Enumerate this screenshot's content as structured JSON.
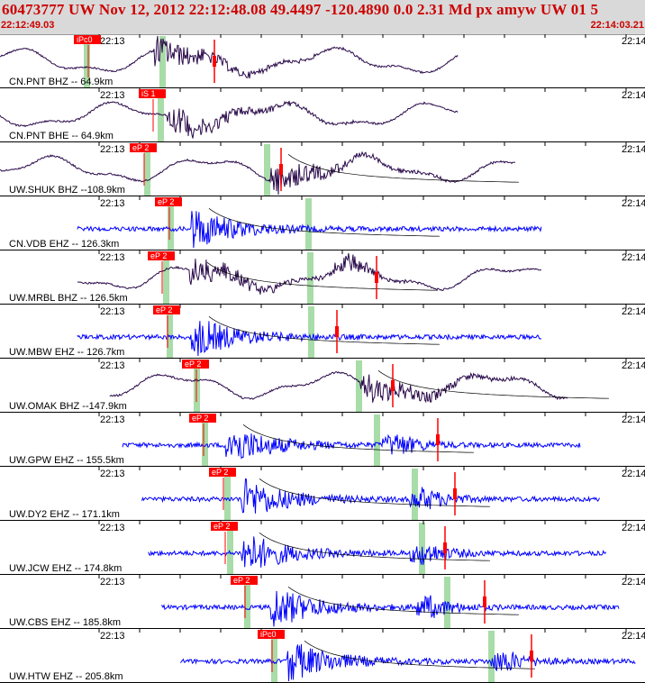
{
  "header": {
    "title": "60473777 UW Nov 12, 2012 22:12:48.08    49.4497 -120.4890  0.0 2.31 Md px amyw UW 01    5",
    "start_time": "22:12:49.03",
    "end_time": "22:14:03.21"
  },
  "colors": {
    "header_bg": "#d9d9d9",
    "header_text": "#cc0000",
    "broadband_trace": "#2a0a4a",
    "short_period_trace": "#0000ff",
    "pick_flag": "#ff0000",
    "arrival_band": "#a8dca8",
    "grid_line": "#000000"
  },
  "time_tick_label": "22:13",
  "right_edge_label": "22:14",
  "traces": [
    {
      "station": "CN.PNT BHZ -- 64.9km",
      "pick": "iPc0",
      "type": "broadband",
      "extent": [
        0.0,
        0.71
      ]
    },
    {
      "station": "CN.PNT BHE -- 64.9km",
      "pick": "iS 1",
      "type": "broadband",
      "extent": [
        0.0,
        0.71
      ]
    },
    {
      "station": "UW.SHUK BHZ --108.9km",
      "pick": "eP 2",
      "type": "broadband",
      "extent": [
        0.0,
        0.8
      ]
    },
    {
      "station": "CN.VDB EHZ -- 126.3km",
      "pick": "eP 2",
      "type": "short_period",
      "extent": [
        0.12,
        0.84
      ]
    },
    {
      "station": "UW.MRBL BHZ -- 126.5km",
      "pick": "eP 2",
      "type": "broadband",
      "extent": [
        0.12,
        0.84
      ]
    },
    {
      "station": "UW.MBW EHZ -- 126.7km",
      "pick": "eP 2",
      "type": "short_period",
      "extent": [
        0.12,
        0.84
      ]
    },
    {
      "station": "UW.OMAK BHZ --147.9km",
      "pick": "eP 2",
      "type": "broadband",
      "extent": [
        0.17,
        0.88
      ]
    },
    {
      "station": "UW.GPW EHZ -- 155.5km",
      "pick": "eP 2",
      "type": "short_period",
      "extent": [
        0.19,
        0.9
      ]
    },
    {
      "station": "UW.DY2 EHZ -- 171.1km",
      "pick": "eP 2",
      "type": "short_period",
      "extent": [
        0.22,
        0.93
      ]
    },
    {
      "station": "UW.JCW EHZ -- 174.8km",
      "pick": "eP 2",
      "type": "short_period",
      "extent": [
        0.23,
        0.94
      ]
    },
    {
      "station": "UW.CBS EHZ -- 185.8km",
      "pick": "eP 2",
      "type": "short_period",
      "extent": [
        0.25,
        0.96
      ]
    },
    {
      "station": "UW.HTW EHZ -- 205.8km",
      "pick": "iPc0",
      "type": "short_period",
      "extent": [
        0.28,
        1.0
      ]
    }
  ]
}
